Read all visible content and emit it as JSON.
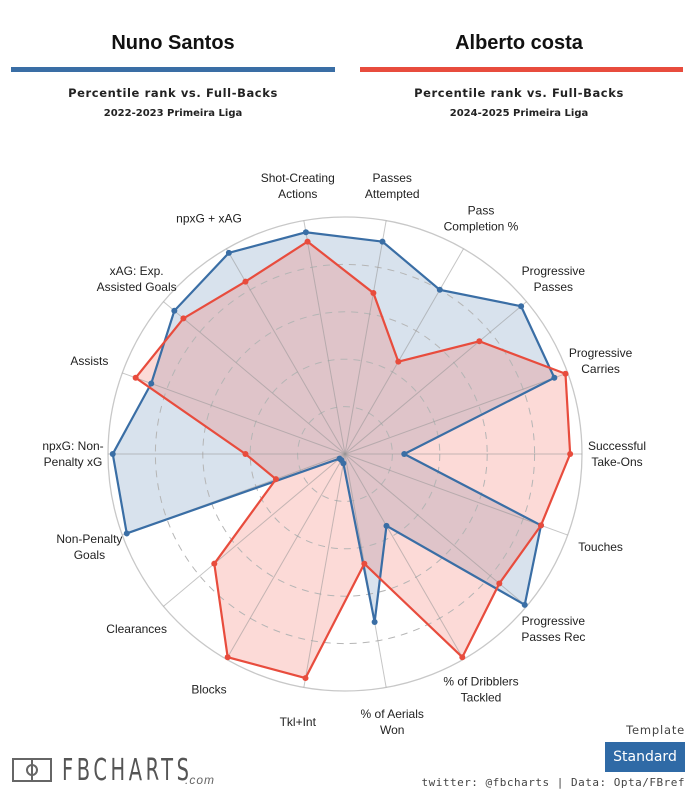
{
  "players": [
    {
      "name": "Nuno Santos",
      "subtitle": "Percentile rank vs. Full-Backs",
      "season": "2022-2023 Primeira Liga",
      "color": "#3a6ea5"
    },
    {
      "name": "Alberto costa",
      "subtitle": "Percentile rank vs. Full-Backs",
      "season": "2024-2025 Primeira Liga",
      "color": "#e84c3d"
    }
  ],
  "chart_data": {
    "type": "radar",
    "title": "Percentile rank vs. Full-Backs",
    "range": [
      0,
      100
    ],
    "grid": "dashed rings at 20,40,60,80; solid outer ring at 100",
    "axes": [
      [
        "Successful",
        "Take-Ons"
      ],
      [
        "Progressive",
        "Carries"
      ],
      [
        "Progressive",
        "Passes"
      ],
      [
        "Pass",
        "Completion %"
      ],
      [
        "Passes",
        "Attempted"
      ],
      [
        "Shot-Creating",
        "Actions"
      ],
      [
        "npxG + xAG"
      ],
      [
        "xAG: Exp.",
        "Assisted Goals"
      ],
      [
        "Assists"
      ],
      [
        "npxG: Non-",
        "Penalty xG"
      ],
      [
        "Non-Penalty",
        "Goals"
      ],
      [
        "Clearances"
      ],
      [
        "Blocks"
      ],
      [
        "Tkl+Int"
      ],
      [
        "% of Aerials",
        "Won"
      ],
      [
        "% of Dribblers",
        "Tackled"
      ],
      [
        "Progressive",
        "Passes Rec"
      ],
      [
        "Touches"
      ]
    ],
    "series": [
      {
        "name": "Nuno Santos",
        "color": "#3a6ea5",
        "fill": "rgba(58,110,165,0.2)",
        "values": [
          25,
          94,
          97,
          80,
          91,
          95,
          98,
          94,
          87,
          98,
          98,
          3,
          3,
          4,
          72,
          35,
          99,
          88
        ]
      },
      {
        "name": "Alberto costa",
        "color": "#e84c3d",
        "fill": "rgba(242,106,96,0.25)",
        "values": [
          95,
          99,
          74,
          45,
          69,
          91,
          84,
          89,
          94,
          42,
          31,
          72,
          99,
          96,
          47,
          99,
          85,
          88
        ]
      }
    ]
  },
  "template": {
    "label": "Template",
    "selected": "Standard"
  },
  "footer": {
    "logo_text": "FBCHARTS",
    "logo_domain": ".com",
    "credits": "twitter: @fbcharts | Data: Opta/FBref"
  }
}
